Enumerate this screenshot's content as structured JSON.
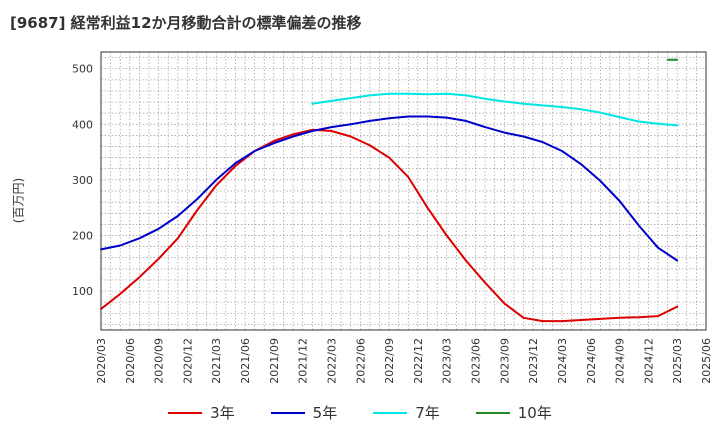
{
  "title": "[9687]  経常利益12か月移動合計の標準偏差の推移",
  "ylabel": "(百万円)",
  "chart_data": {
    "type": "line",
    "title": "[9687]  経常利益12か月移動合計の標準偏差の推移",
    "ylabel": "(百万円)",
    "xlim": [
      "2020-03",
      "2025-06"
    ],
    "ylim": [
      30,
      530
    ],
    "yticks": [
      100,
      200,
      300,
      400,
      500
    ],
    "xticks": [
      "2020/03",
      "2020/06",
      "2020/09",
      "2020/12",
      "2021/03",
      "2021/06",
      "2021/09",
      "2021/12",
      "2022/03",
      "2022/06",
      "2022/09",
      "2022/12",
      "2023/03",
      "2023/06",
      "2023/09",
      "2023/12",
      "2024/03",
      "2024/06",
      "2024/09",
      "2024/12",
      "2025/03",
      "2025/06"
    ],
    "grid": true,
    "legend": "bottom",
    "series": [
      {
        "name": "3年",
        "color": "#dd0000",
        "points": [
          [
            "2020-03",
            68
          ],
          [
            "2020-05",
            95
          ],
          [
            "2020-07",
            125
          ],
          [
            "2020-09",
            158
          ],
          [
            "2020-11",
            195
          ],
          [
            "2021-01",
            245
          ],
          [
            "2021-03",
            290
          ],
          [
            "2021-05",
            325
          ],
          [
            "2021-07",
            352
          ],
          [
            "2021-09",
            370
          ],
          [
            "2021-11",
            382
          ],
          [
            "2022-01",
            390
          ],
          [
            "2022-03",
            388
          ],
          [
            "2022-05",
            378
          ],
          [
            "2022-07",
            362
          ],
          [
            "2022-09",
            340
          ],
          [
            "2022-11",
            305
          ],
          [
            "2023-01",
            250
          ],
          [
            "2023-03",
            200
          ],
          [
            "2023-05",
            155
          ],
          [
            "2023-07",
            115
          ],
          [
            "2023-09",
            78
          ],
          [
            "2023-11",
            52
          ],
          [
            "2024-01",
            46
          ],
          [
            "2024-03",
            46
          ],
          [
            "2024-05",
            48
          ],
          [
            "2024-07",
            50
          ],
          [
            "2024-09",
            52
          ],
          [
            "2024-11",
            53
          ],
          [
            "2025-01",
            55
          ],
          [
            "2025-03",
            72
          ]
        ]
      },
      {
        "name": "5年",
        "color": "#0000cc",
        "points": [
          [
            "2020-03",
            175
          ],
          [
            "2020-05",
            182
          ],
          [
            "2020-07",
            195
          ],
          [
            "2020-09",
            212
          ],
          [
            "2020-11",
            235
          ],
          [
            "2021-01",
            265
          ],
          [
            "2021-03",
            300
          ],
          [
            "2021-05",
            330
          ],
          [
            "2021-07",
            352
          ],
          [
            "2021-09",
            366
          ],
          [
            "2021-11",
            378
          ],
          [
            "2022-01",
            388
          ],
          [
            "2022-03",
            395
          ],
          [
            "2022-05",
            400
          ],
          [
            "2022-07",
            406
          ],
          [
            "2022-09",
            411
          ],
          [
            "2022-11",
            414
          ],
          [
            "2023-01",
            414
          ],
          [
            "2023-03",
            412
          ],
          [
            "2023-05",
            406
          ],
          [
            "2023-07",
            395
          ],
          [
            "2023-09",
            385
          ],
          [
            "2023-11",
            378
          ],
          [
            "2024-01",
            368
          ],
          [
            "2024-03",
            352
          ],
          [
            "2024-05",
            328
          ],
          [
            "2024-07",
            298
          ],
          [
            "2024-09",
            262
          ],
          [
            "2024-11",
            218
          ],
          [
            "2025-01",
            178
          ],
          [
            "2025-03",
            155
          ]
        ]
      },
      {
        "name": "7年",
        "color": "#00e5e5",
        "points": [
          [
            "2022-01",
            437
          ],
          [
            "2022-03",
            442
          ],
          [
            "2022-05",
            447
          ],
          [
            "2022-07",
            452
          ],
          [
            "2022-09",
            455
          ],
          [
            "2022-11",
            455
          ],
          [
            "2023-01",
            454
          ],
          [
            "2023-03",
            455
          ],
          [
            "2023-05",
            452
          ],
          [
            "2023-07",
            446
          ],
          [
            "2023-09",
            441
          ],
          [
            "2023-11",
            437
          ],
          [
            "2024-01",
            434
          ],
          [
            "2024-03",
            431
          ],
          [
            "2024-05",
            427
          ],
          [
            "2024-07",
            421
          ],
          [
            "2024-09",
            413
          ],
          [
            "2024-11",
            405
          ],
          [
            "2025-01",
            401
          ],
          [
            "2025-03",
            398
          ]
        ]
      },
      {
        "name": "10年",
        "color": "#228822",
        "points": [
          [
            "2025-02",
            516
          ],
          [
            "2025-03",
            516
          ]
        ]
      }
    ]
  }
}
